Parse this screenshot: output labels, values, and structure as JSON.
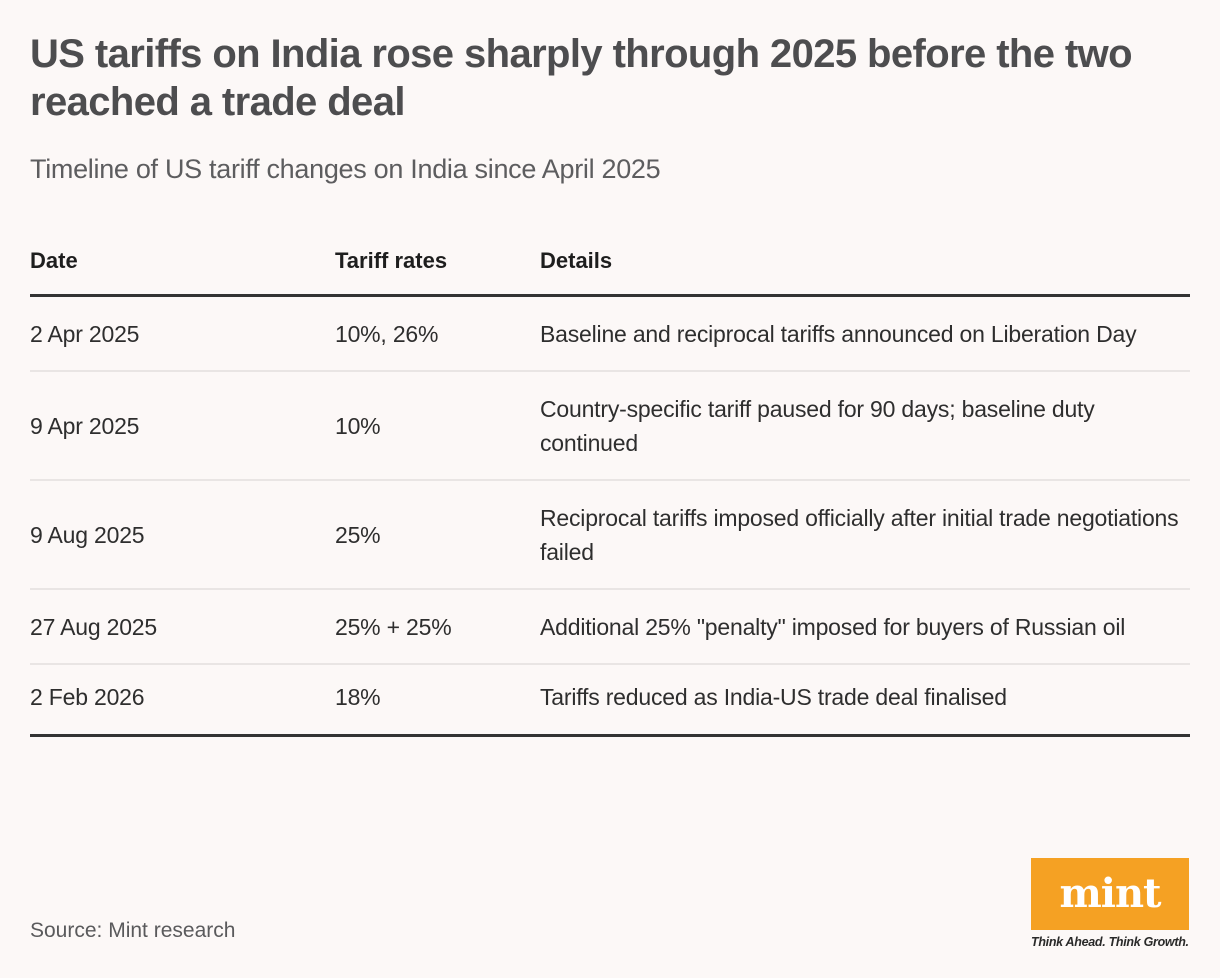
{
  "header": {
    "title": "US tariffs on India rose sharply through 2025 before the two reached a trade deal",
    "subtitle": "Timeline of US tariff changes on India since April 2025"
  },
  "chart_data": {
    "type": "table",
    "title": "US tariffs on India rose sharply through 2025 before the two reached a trade deal",
    "subtitle": "Timeline of US tariff changes on India since April 2025",
    "columns": [
      "Date",
      "Tariff rates",
      "Details"
    ],
    "rows": [
      {
        "date": "2 Apr 2025",
        "rates": "10%, 26%",
        "details": "Baseline and reciprocal tariffs announced on Liberation Day"
      },
      {
        "date": "9 Apr 2025",
        "rates": "10%",
        "details": "Country-specific tariff paused for 90 days; baseline duty continued"
      },
      {
        "date": "9 Aug 2025",
        "rates": "25%",
        "details": "Reciprocal tariffs imposed officially after initial trade negotiations failed"
      },
      {
        "date": "27 Aug 2025",
        "rates": "25% + 25%",
        "details": "Additional 25% \"penalty\" imposed for buyers of Russian oil"
      },
      {
        "date": "2 Feb 2026",
        "rates": "18%",
        "details": "Tariffs reduced as India-US trade deal finalised"
      }
    ],
    "source": "Source: Mint research"
  },
  "footer": {
    "source": "Source: Mint research",
    "logo_text": "mint",
    "tagline": "Think Ahead. Think Growth.",
    "brand_color": "#f5a123"
  }
}
